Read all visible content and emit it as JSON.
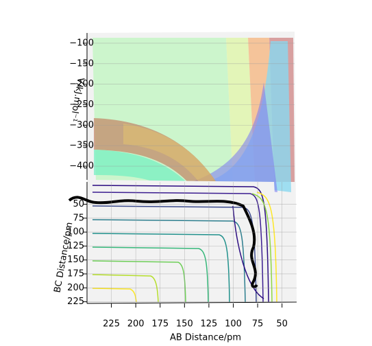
{
  "chart_data": {
    "type": "surface",
    "x_label": "AB Distance/pm",
    "y_label": "BC Distance/pm",
    "z_label": "V/kJ.mol⁻¹",
    "xlim": [
      250,
      35
    ],
    "xticks": [
      225,
      200,
      175,
      150,
      125,
      100,
      75,
      50
    ],
    "ylim": [
      10,
      228
    ],
    "yticks": [
      50,
      75,
      100,
      125,
      150,
      175,
      200,
      225
    ],
    "zlim": [
      -75,
      -430
    ],
    "zticks": [
      {
        "value": -100,
        "label": "−100"
      },
      {
        "value": -150,
        "label": "−150"
      },
      {
        "value": -200,
        "label": "−200"
      },
      {
        "value": -250,
        "label": "−250"
      },
      {
        "value": -300,
        "label": "−300"
      },
      {
        "value": -350,
        "label": "−350"
      },
      {
        "value": -400,
        "label": "−400"
      }
    ],
    "grid": true
  }
}
